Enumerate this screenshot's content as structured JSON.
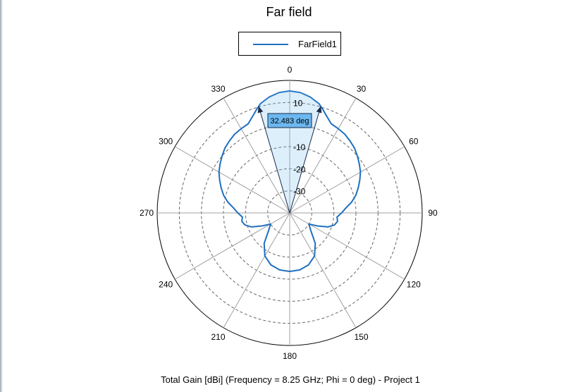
{
  "chart_data": {
    "type": "polar",
    "title": "Far field",
    "caption": "Total Gain [dBi] (Frequency = 8.25 GHz; Phi = 0 deg) - Project 1",
    "legend": {
      "entries": [
        "FarField1"
      ],
      "placement": "top-center"
    },
    "angle_unit": "deg",
    "angular_ticks": [
      "0",
      "30",
      "60",
      "90",
      "120",
      "150",
      "180",
      "210",
      "240",
      "270",
      "300",
      "330"
    ],
    "radial_range": [
      -40,
      20
    ],
    "radial_ticks": [
      10,
      -10,
      -20,
      -30
    ],
    "radial_tick_labels": [
      "10",
      "-10",
      "-20",
      "-30"
    ],
    "beamwidth_annotation": {
      "label": "32.483 deg",
      "from_angle": -16.24,
      "to_angle": 16.24
    },
    "series": [
      {
        "name": "FarField1",
        "color": "#1f6fbf",
        "theta": [
          0,
          5,
          10,
          15,
          18,
          20,
          25,
          30,
          35,
          40,
          45,
          50,
          55,
          60,
          65,
          70,
          75,
          80,
          85,
          90,
          95,
          100,
          105,
          110,
          115,
          120,
          130,
          140,
          150,
          160,
          170,
          180,
          190,
          200,
          210,
          220,
          230,
          240,
          245,
          250,
          255,
          260,
          265,
          270,
          275,
          280,
          285,
          290,
          295,
          300,
          305,
          310,
          315,
          320,
          325,
          330,
          335,
          340,
          342,
          345,
          350,
          355,
          360
        ],
        "gain": [
          15.2,
          14.7,
          13.3,
          11.2,
          9.0,
          7.5,
          4.5,
          4.0,
          3.5,
          2.5,
          1.5,
          0.0,
          -1.5,
          -3.0,
          -5.0,
          -7.0,
          -9.0,
          -11.5,
          -14.5,
          -16.5,
          -18.5,
          -18.0,
          -19.0,
          -21.5,
          -26.0,
          -30.0,
          -27.5,
          -22.0,
          -17.5,
          -15.0,
          -13.8,
          -13.5,
          -13.8,
          -15.0,
          -17.5,
          -22.0,
          -27.5,
          -30.0,
          -26.0,
          -21.5,
          -19.0,
          -18.0,
          -18.5,
          -16.5,
          -14.5,
          -11.5,
          -9.0,
          -7.0,
          -5.0,
          -3.0,
          -1.5,
          0.0,
          1.5,
          2.5,
          3.5,
          4.0,
          4.5,
          7.5,
          9.0,
          11.2,
          13.3,
          14.7,
          15.2
        ]
      }
    ]
  }
}
